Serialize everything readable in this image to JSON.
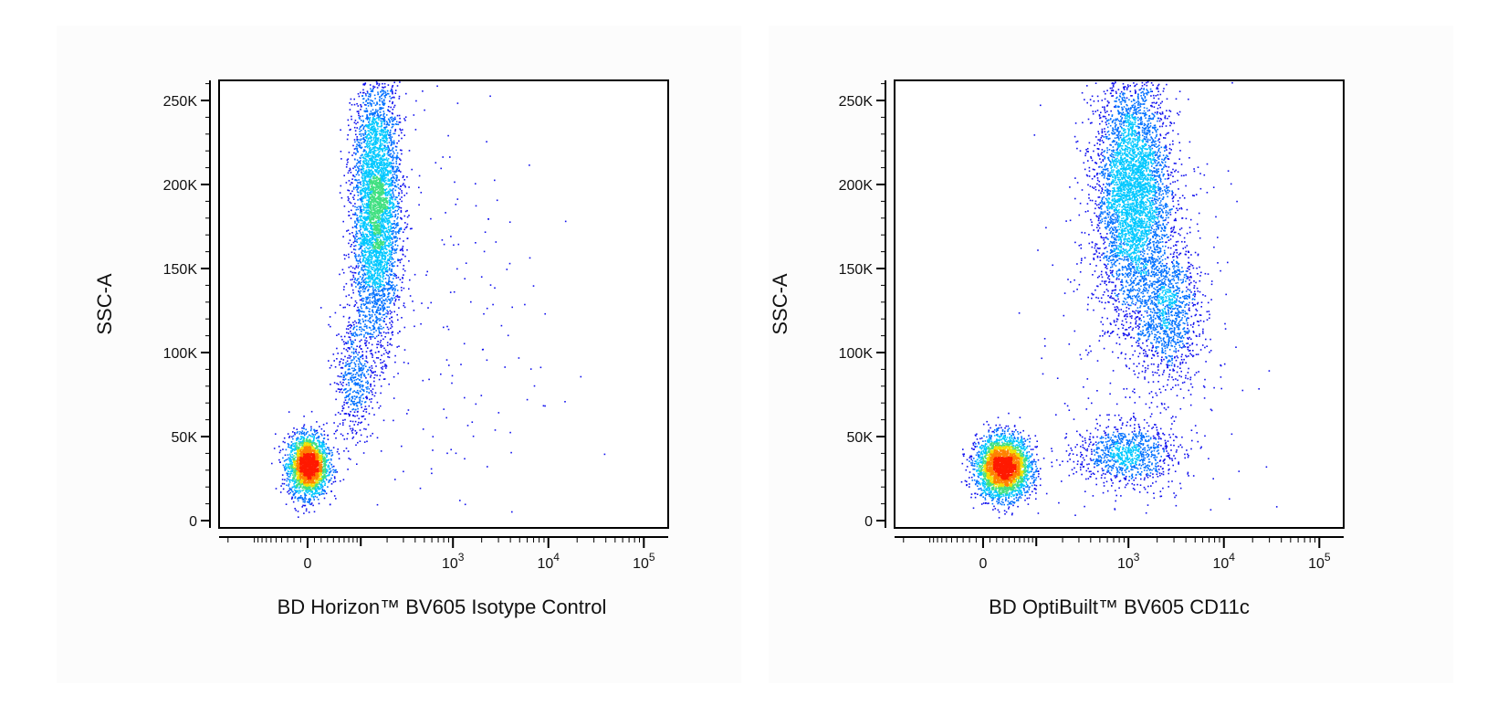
{
  "chart_data": [
    {
      "type": "scatter",
      "subtype": "flow-cytometry-density-dot-plot",
      "xlabel": "BD Horizon™ BV605 Isotype Control",
      "ylabel": "SSC-A",
      "x_scale": "biexponential",
      "ylim": [
        0,
        262144
      ],
      "y_ticks": [
        {
          "value": 0,
          "label": "0"
        },
        {
          "value": 50000,
          "label": "50K"
        },
        {
          "value": 100000,
          "label": "100K"
        },
        {
          "value": 150000,
          "label": "150K"
        },
        {
          "value": 200000,
          "label": "200K"
        },
        {
          "value": 250000,
          "label": "250K"
        }
      ],
      "x_ticks": [
        {
          "value": 0,
          "base": "0",
          "exp": ""
        },
        {
          "value": 1000,
          "base": "10",
          "exp": "3"
        },
        {
          "value": 10000,
          "base": "10",
          "exp": "4"
        },
        {
          "value": 100000,
          "base": "10",
          "exp": "5"
        }
      ],
      "populations": [
        {
          "name": "low-SSC cluster",
          "x_center": 0,
          "y_center": 33000,
          "x_spread": 0.18,
          "y_spread": 9000,
          "count": 2600
        },
        {
          "name": "high-SSC column",
          "x_center": 150,
          "y_center": 185000,
          "x_spread": 0.22,
          "y_spread": 40000,
          "count": 4200
        },
        {
          "name": "column stem",
          "x_center": 80,
          "y_center": 85000,
          "x_spread": 0.18,
          "y_spread": 20000,
          "count": 500
        },
        {
          "name": "sparse scatter",
          "x_center": 800,
          "y_center": 120000,
          "x_spread": 0.9,
          "y_spread": 80000,
          "count": 160
        }
      ],
      "colors": {
        "sparse": "#1010ee",
        "low": "#00c8ff",
        "mid": "#40e080",
        "high": "#f0e000",
        "peak": "#ff1a00"
      }
    },
    {
      "type": "scatter",
      "subtype": "flow-cytometry-density-dot-plot",
      "xlabel": "BD OptiBuilt™ BV605 CD11c",
      "ylabel": "SSC-A",
      "x_scale": "biexponential",
      "ylim": [
        0,
        262144
      ],
      "y_ticks": [
        {
          "value": 0,
          "label": "0"
        },
        {
          "value": 50000,
          "label": "50K"
        },
        {
          "value": 100000,
          "label": "100K"
        },
        {
          "value": 150000,
          "label": "150K"
        },
        {
          "value": 200000,
          "label": "200K"
        },
        {
          "value": 250000,
          "label": "250K"
        }
      ],
      "x_ticks": [
        {
          "value": 0,
          "base": "0",
          "exp": ""
        },
        {
          "value": 1000,
          "base": "10",
          "exp": "3"
        },
        {
          "value": 10000,
          "base": "10",
          "exp": "4"
        },
        {
          "value": 100000,
          "base": "10",
          "exp": "5"
        }
      ],
      "populations": [
        {
          "name": "low-SSC cluster",
          "x_center": 30,
          "y_center": 32000,
          "x_spread": 0.25,
          "y_spread": 9000,
          "count": 3200
        },
        {
          "name": "CD11c+ low-SSC arm",
          "x_center": 900,
          "y_center": 40000,
          "x_spread": 0.45,
          "y_spread": 9000,
          "count": 900
        },
        {
          "name": "CD11c+ high-SSC",
          "x_center": 1100,
          "y_center": 195000,
          "x_spread": 0.35,
          "y_spread": 35000,
          "count": 4200
        },
        {
          "name": "CD11c+ mid-SSC",
          "x_center": 2500,
          "y_center": 125000,
          "x_spread": 0.3,
          "y_spread": 20000,
          "count": 1100
        },
        {
          "name": "sparse scatter",
          "x_center": 1500,
          "y_center": 110000,
          "x_spread": 0.8,
          "y_spread": 75000,
          "count": 500
        }
      ],
      "colors": {
        "sparse": "#1010ee",
        "low": "#00c8ff",
        "mid": "#40e080",
        "high": "#f0e000",
        "peak": "#ff1a00"
      }
    }
  ]
}
